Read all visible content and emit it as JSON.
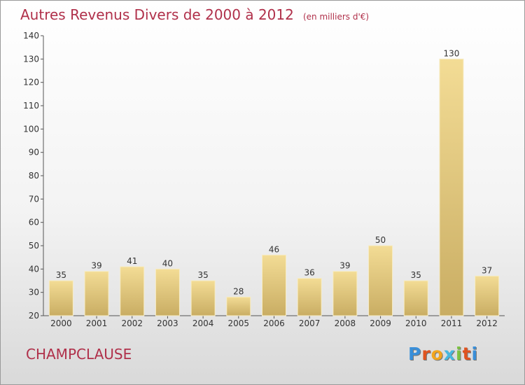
{
  "header": {
    "title": "Autres Revenus Divers de 2000 à 2012",
    "unit": "(en milliers d'€)"
  },
  "footer": {
    "commune": "CHAMPCLAUSE"
  },
  "brand": {
    "letters": [
      "P",
      "r",
      "o",
      "x",
      "i",
      "t",
      "i"
    ],
    "colors": [
      "#3a8fd9",
      "#e0531f",
      "#f2a51e",
      "#47b8e0",
      "#7cc242",
      "#e0531f",
      "#3a8fd9"
    ]
  },
  "chart_data": {
    "type": "bar",
    "categories": [
      "2000",
      "2001",
      "2002",
      "2003",
      "2004",
      "2005",
      "2006",
      "2007",
      "2008",
      "2009",
      "2010",
      "2011",
      "2012"
    ],
    "values": [
      35,
      39,
      41,
      40,
      35,
      28,
      46,
      36,
      39,
      50,
      35,
      130,
      37
    ],
    "value_labels": [
      "35",
      "39",
      "41",
      "40",
      "35",
      "28",
      "46",
      "36",
      "39",
      "50",
      "35",
      "130",
      "37"
    ],
    "ylim": [
      20,
      140
    ],
    "yticks": [
      "20",
      "30",
      "40",
      "50",
      "60",
      "70",
      "80",
      "90",
      "100",
      "110",
      "120",
      "130",
      "140"
    ],
    "ytick_values": [
      20,
      30,
      40,
      50,
      60,
      70,
      80,
      90,
      100,
      110,
      120,
      130,
      140
    ],
    "bar_color": "#e8cf7e",
    "grid": false
  }
}
